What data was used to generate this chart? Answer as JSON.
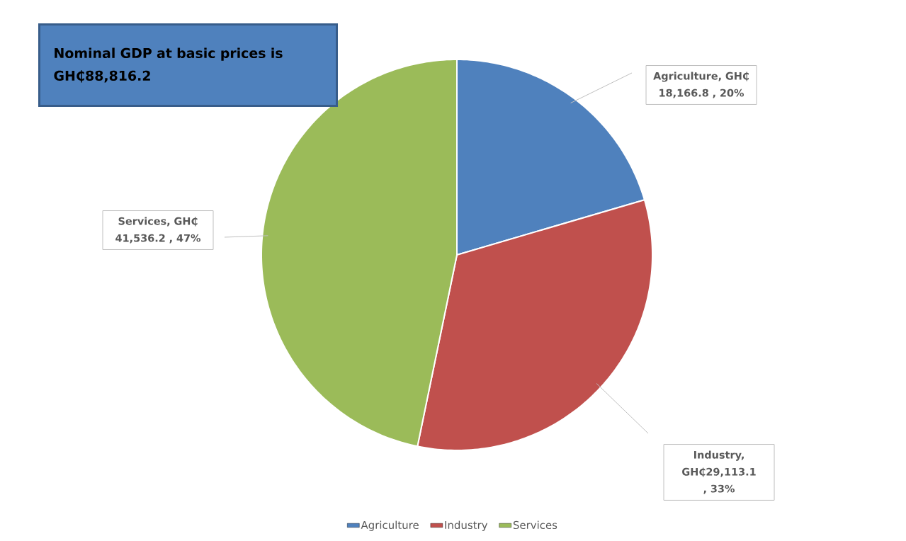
{
  "chart_data": {
    "type": "pie",
    "title": "Nominal GDP at basic prices is GH₵88,816.2",
    "categories": [
      "Agriculture",
      "Industry",
      "Services"
    ],
    "values": [
      18166.8,
      29113.1,
      41536.2
    ],
    "colors": [
      "#4f81bd",
      "#c0504d",
      "#9bbb59"
    ],
    "value_labels": [
      "Agriculture, GH₵ 18,166.8 , 20%",
      "Industry, GH₵29,113.1 , 33%",
      "Services, GH₵ 41,536.2 , 47%"
    ],
    "legend": "bottom"
  }
}
